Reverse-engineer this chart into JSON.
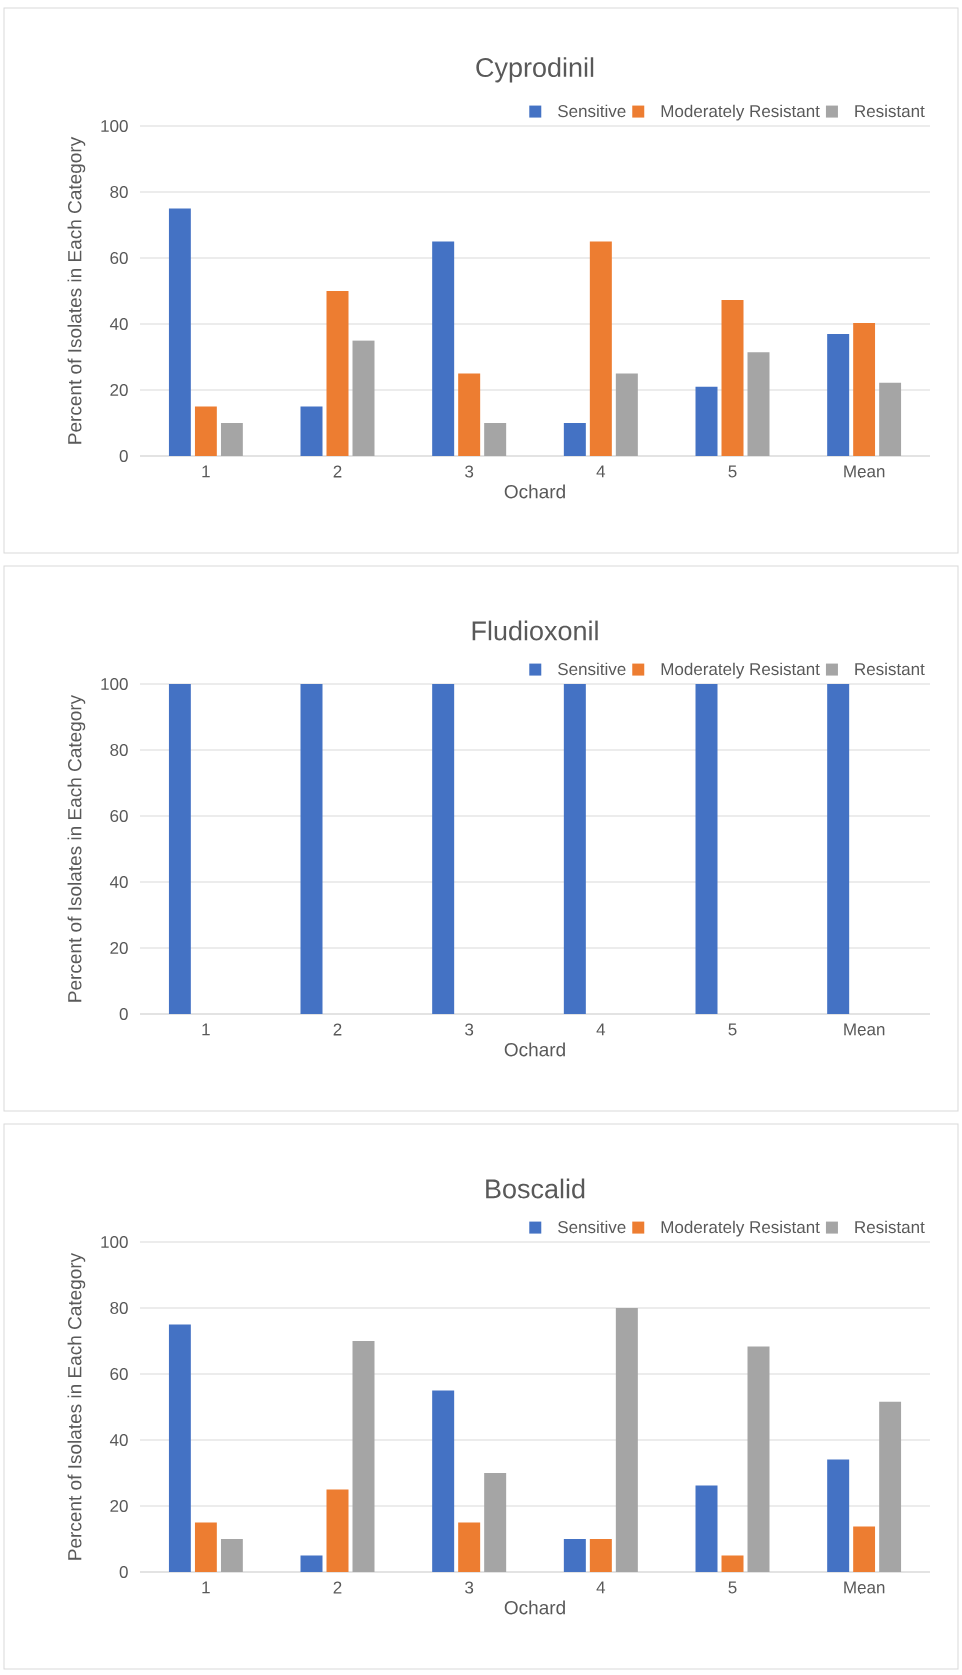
{
  "chart_data": [
    {
      "type": "bar",
      "title": "Cyprodinil",
      "xlabel": "Ochard",
      "ylabel": "Percent of Isolates in Each Category",
      "categories": [
        "1",
        "2",
        "3",
        "4",
        "5",
        "Mean"
      ],
      "ylim": [
        0,
        100
      ],
      "yticks": [
        0,
        20,
        40,
        60,
        80,
        100
      ],
      "grid": "y",
      "legend": "top right",
      "series": [
        {
          "name": "Sensitive",
          "color": "#4472c4",
          "values": [
            75,
            15,
            65,
            10,
            21,
            37
          ]
        },
        {
          "name": "Moderately Resistant",
          "color": "#ed7d31",
          "values": [
            15,
            50,
            25,
            65,
            47.3,
            40.3
          ]
        },
        {
          "name": "Resistant",
          "color": "#a5a5a5",
          "values": [
            10,
            35,
            10,
            25,
            31.4,
            22.2
          ]
        }
      ]
    },
    {
      "type": "bar",
      "title": "Fludioxonil",
      "xlabel": "Ochard",
      "ylabel": "Percent of Isolates in Each Category",
      "categories": [
        "1",
        "2",
        "3",
        "4",
        "5",
        "Mean"
      ],
      "ylim": [
        0,
        100
      ],
      "yticks": [
        0,
        20,
        40,
        60,
        80,
        100
      ],
      "grid": "y",
      "legend": "top right",
      "series": [
        {
          "name": "Sensitive",
          "color": "#4472c4",
          "values": [
            100,
            100,
            100,
            100,
            100,
            100
          ]
        },
        {
          "name": "Moderately Resistant",
          "color": "#ed7d31",
          "values": [
            0,
            0,
            0,
            0,
            0,
            0
          ]
        },
        {
          "name": "Resistant",
          "color": "#a5a5a5",
          "values": [
            0,
            0,
            0,
            0,
            0,
            0
          ]
        }
      ]
    },
    {
      "type": "bar",
      "title": "Boscalid",
      "xlabel": "Ochard",
      "ylabel": "Percent of Isolates in Each Category",
      "categories": [
        "1",
        "2",
        "3",
        "4",
        "5",
        "Mean"
      ],
      "ylim": [
        0,
        100
      ],
      "yticks": [
        0,
        20,
        40,
        60,
        80,
        100
      ],
      "grid": "y",
      "legend": "top right",
      "series": [
        {
          "name": "Sensitive",
          "color": "#4472c4",
          "values": [
            75,
            5,
            55,
            10,
            26.2,
            34.1
          ]
        },
        {
          "name": "Moderately Resistant",
          "color": "#ed7d31",
          "values": [
            15,
            25,
            15,
            10,
            5,
            13.8
          ]
        },
        {
          "name": "Resistant",
          "color": "#a5a5a5",
          "values": [
            10,
            70,
            30,
            80,
            68.3,
            51.6
          ]
        }
      ]
    }
  ]
}
